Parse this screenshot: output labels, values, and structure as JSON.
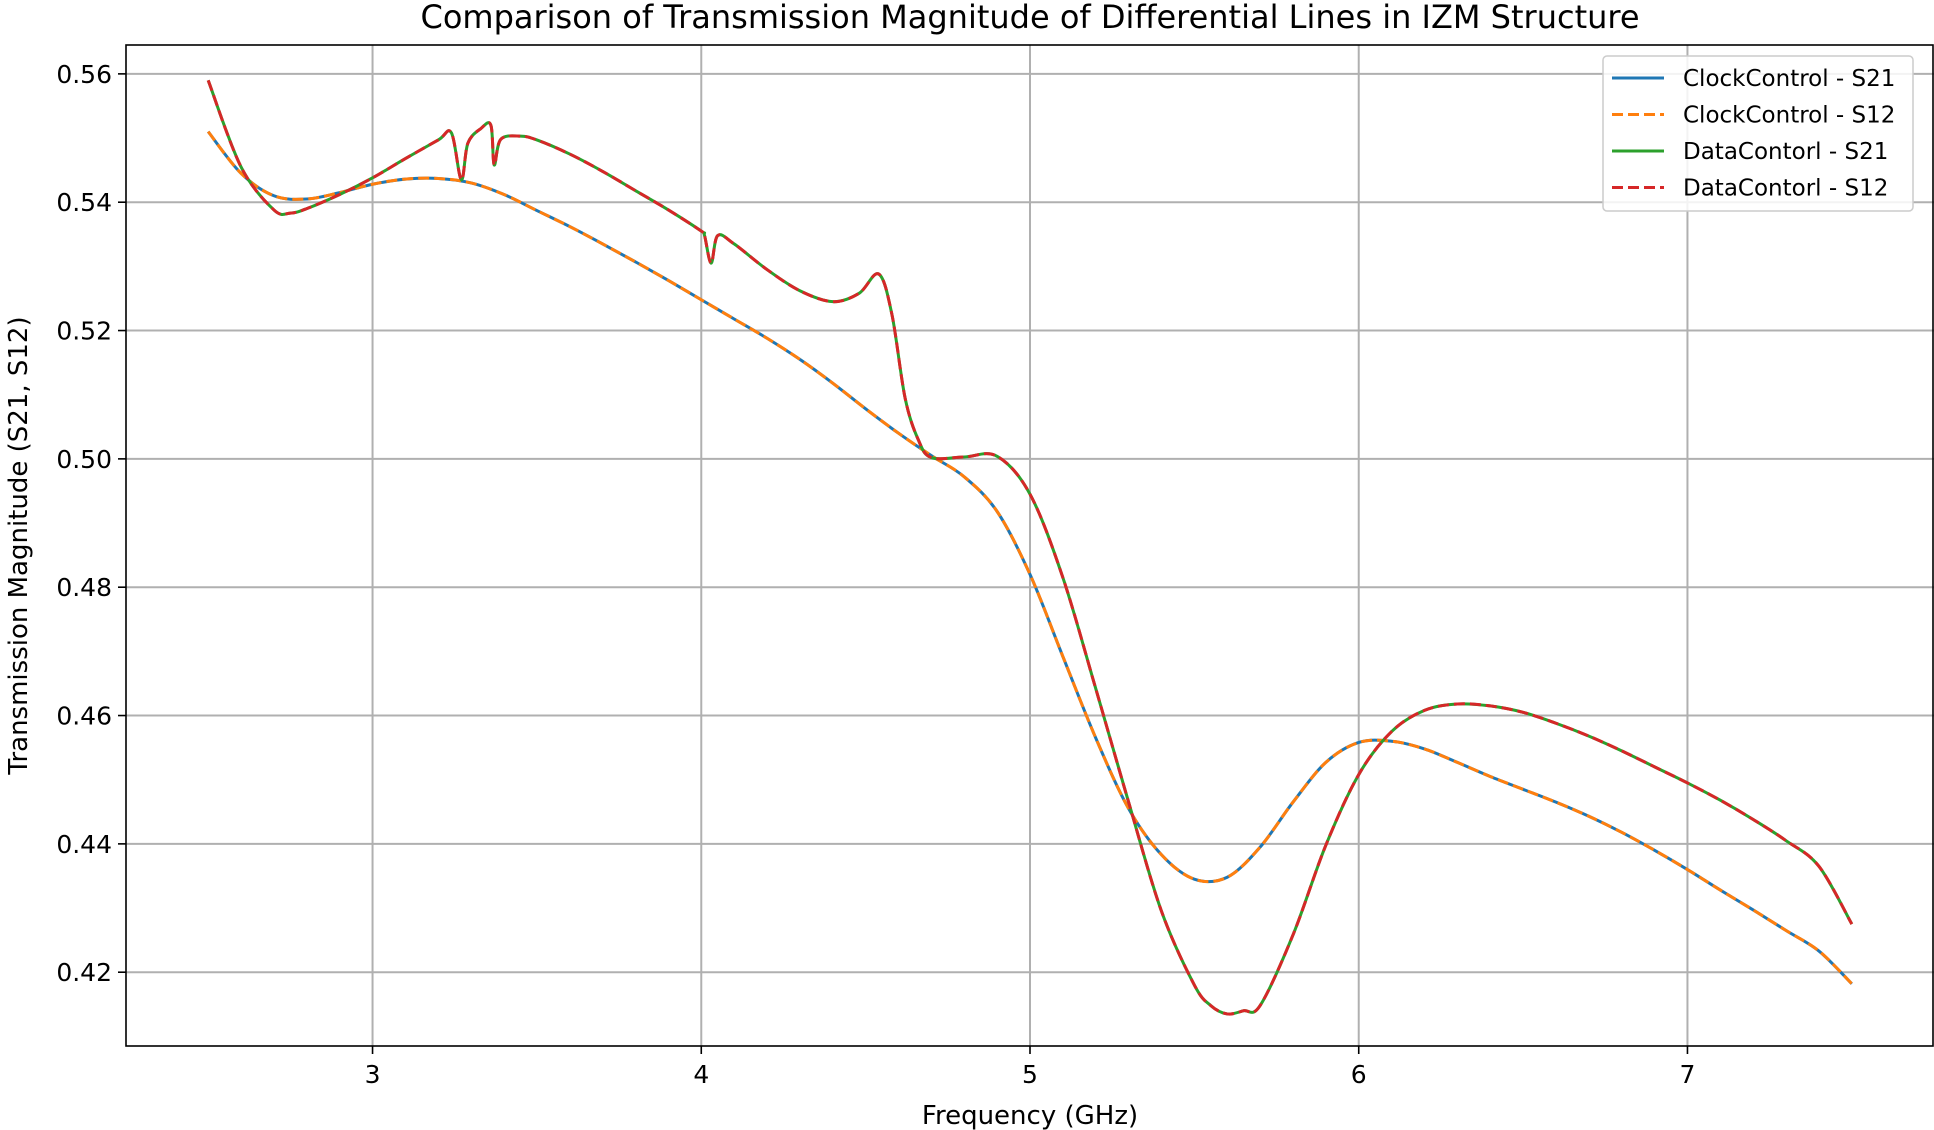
{
  "chart_data": {
    "type": "line",
    "title": "Comparison of Transmission Magnitude of Differential Lines in IZM Structure",
    "xlabel": "Frequency (GHz)",
    "ylabel": "Transmission Magnitude (S21, S12)",
    "xlim": [
      2.25,
      7.75
    ],
    "ylim": [
      0.4085,
      0.5645
    ],
    "xticks": [
      3,
      4,
      5,
      6,
      7
    ],
    "xtick_labels": [
      "3",
      "4",
      "5",
      "6",
      "7"
    ],
    "yticks": [
      0.42,
      0.44,
      0.46,
      0.48,
      0.5,
      0.52,
      0.54,
      0.56
    ],
    "ytick_labels": [
      "0.42",
      "0.44",
      "0.46",
      "0.48",
      "0.50",
      "0.52",
      "0.54",
      "0.56"
    ],
    "grid": true,
    "legend_position": "top-right",
    "series": [
      {
        "name": "ClockControl - S21",
        "color": "#1f77b4",
        "linestyle": "solid",
        "x": [
          2.5,
          2.6,
          2.7,
          2.8,
          2.9,
          3.0,
          3.1,
          3.2,
          3.3,
          3.4,
          3.5,
          3.6,
          3.7,
          3.8,
          3.9,
          4.0,
          4.1,
          4.2,
          4.3,
          4.4,
          4.5,
          4.6,
          4.7,
          4.8,
          4.9,
          5.0,
          5.1,
          5.2,
          5.3,
          5.4,
          5.5,
          5.6,
          5.7,
          5.8,
          5.9,
          6.0,
          6.1,
          6.2,
          6.3,
          6.4,
          6.5,
          6.6,
          6.7,
          6.8,
          6.9,
          7.0,
          7.1,
          7.2,
          7.3,
          7.4,
          7.5
        ],
        "y": [
          0.551,
          0.5445,
          0.541,
          0.5405,
          0.5415,
          0.5428,
          0.5436,
          0.5437,
          0.543,
          0.5412,
          0.5387,
          0.5362,
          0.5335,
          0.5307,
          0.5278,
          0.5248,
          0.5218,
          0.5188,
          0.5155,
          0.5118,
          0.5078,
          0.504,
          0.5005,
          0.4972,
          0.4918,
          0.482,
          0.4692,
          0.4565,
          0.4455,
          0.4383,
          0.4345,
          0.4348,
          0.4395,
          0.4465,
          0.4527,
          0.4558,
          0.456,
          0.4548,
          0.4527,
          0.4505,
          0.4485,
          0.4465,
          0.4443,
          0.4418,
          0.439,
          0.436,
          0.4328,
          0.4297,
          0.4265,
          0.4233,
          0.4182
        ]
      },
      {
        "name": "ClockControl - S12",
        "color": "#ff7f0e",
        "linestyle": "dashed",
        "x": [
          2.5,
          2.6,
          2.7,
          2.8,
          2.9,
          3.0,
          3.1,
          3.2,
          3.3,
          3.4,
          3.5,
          3.6,
          3.7,
          3.8,
          3.9,
          4.0,
          4.1,
          4.2,
          4.3,
          4.4,
          4.5,
          4.6,
          4.7,
          4.8,
          4.9,
          5.0,
          5.1,
          5.2,
          5.3,
          5.4,
          5.5,
          5.6,
          5.7,
          5.8,
          5.9,
          6.0,
          6.1,
          6.2,
          6.3,
          6.4,
          6.5,
          6.6,
          6.7,
          6.8,
          6.9,
          7.0,
          7.1,
          7.2,
          7.3,
          7.4,
          7.5
        ],
        "y": [
          0.551,
          0.5445,
          0.541,
          0.5405,
          0.5415,
          0.5428,
          0.5436,
          0.5437,
          0.543,
          0.5412,
          0.5387,
          0.5362,
          0.5335,
          0.5307,
          0.5278,
          0.5248,
          0.5218,
          0.5188,
          0.5155,
          0.5118,
          0.5078,
          0.504,
          0.5005,
          0.4972,
          0.4918,
          0.482,
          0.4692,
          0.4565,
          0.4455,
          0.4383,
          0.4345,
          0.4348,
          0.4395,
          0.4465,
          0.4527,
          0.4558,
          0.456,
          0.4548,
          0.4527,
          0.4505,
          0.4485,
          0.4465,
          0.4443,
          0.4418,
          0.439,
          0.436,
          0.4328,
          0.4297,
          0.4265,
          0.4233,
          0.4182
        ]
      },
      {
        "name": "DataContorl - S21",
        "color": "#2ca02c",
        "linestyle": "solid",
        "x": [
          2.5,
          2.6,
          2.7,
          2.75,
          2.8,
          2.9,
          3.0,
          3.1,
          3.2,
          3.24,
          3.27,
          3.29,
          3.33,
          3.36,
          3.37,
          3.39,
          3.45,
          3.5,
          3.6,
          3.7,
          3.8,
          3.9,
          4.0,
          4.01,
          4.03,
          4.05,
          4.1,
          4.2,
          4.3,
          4.4,
          4.48,
          4.54,
          4.58,
          4.62,
          4.66,
          4.7,
          4.8,
          4.9,
          5.0,
          5.1,
          5.2,
          5.3,
          5.4,
          5.5,
          5.55,
          5.6,
          5.65,
          5.7,
          5.8,
          5.9,
          6.0,
          6.1,
          6.2,
          6.3,
          6.4,
          6.5,
          6.6,
          6.7,
          6.8,
          6.9,
          7.0,
          7.1,
          7.2,
          7.3,
          7.4,
          7.5
        ],
        "y": [
          0.559,
          0.5455,
          0.5388,
          0.5383,
          0.539,
          0.5412,
          0.5438,
          0.5468,
          0.5497,
          0.5508,
          0.5435,
          0.5492,
          0.5515,
          0.552,
          0.5458,
          0.5498,
          0.5503,
          0.5497,
          0.5475,
          0.5448,
          0.5418,
          0.5388,
          0.5355,
          0.5348,
          0.5305,
          0.5348,
          0.5335,
          0.5295,
          0.5262,
          0.5245,
          0.5258,
          0.5288,
          0.5225,
          0.5095,
          0.503,
          0.5002,
          0.5003,
          0.5004,
          0.4945,
          0.4815,
          0.4642,
          0.4465,
          0.4295,
          0.418,
          0.4148,
          0.4135,
          0.414,
          0.4148,
          0.4258,
          0.4398,
          0.4508,
          0.4575,
          0.4608,
          0.4618,
          0.4615,
          0.4605,
          0.4588,
          0.4568,
          0.4545,
          0.452,
          0.4495,
          0.4468,
          0.4438,
          0.4405,
          0.4365,
          0.4275
        ]
      },
      {
        "name": "DataContorl - S12",
        "color": "#d62728",
        "linestyle": "dashed",
        "x": [
          2.5,
          2.6,
          2.7,
          2.75,
          2.8,
          2.9,
          3.0,
          3.1,
          3.2,
          3.24,
          3.27,
          3.29,
          3.33,
          3.36,
          3.37,
          3.39,
          3.45,
          3.5,
          3.6,
          3.7,
          3.8,
          3.9,
          4.0,
          4.01,
          4.03,
          4.05,
          4.1,
          4.2,
          4.3,
          4.4,
          4.48,
          4.54,
          4.58,
          4.62,
          4.66,
          4.7,
          4.8,
          4.9,
          5.0,
          5.1,
          5.2,
          5.3,
          5.4,
          5.5,
          5.55,
          5.6,
          5.65,
          5.7,
          5.8,
          5.9,
          6.0,
          6.1,
          6.2,
          6.3,
          6.4,
          6.5,
          6.6,
          6.7,
          6.8,
          6.9,
          7.0,
          7.1,
          7.2,
          7.3,
          7.4,
          7.5
        ],
        "y": [
          0.559,
          0.5455,
          0.5388,
          0.5383,
          0.539,
          0.5412,
          0.5438,
          0.5468,
          0.5497,
          0.5508,
          0.5435,
          0.5492,
          0.5515,
          0.552,
          0.5458,
          0.5498,
          0.5503,
          0.5497,
          0.5475,
          0.5448,
          0.5418,
          0.5388,
          0.5355,
          0.5348,
          0.5305,
          0.5348,
          0.5335,
          0.5295,
          0.5262,
          0.5245,
          0.5258,
          0.5288,
          0.5225,
          0.5095,
          0.503,
          0.5002,
          0.5003,
          0.5004,
          0.4945,
          0.4815,
          0.4642,
          0.4465,
          0.4295,
          0.418,
          0.4148,
          0.4135,
          0.414,
          0.4148,
          0.4258,
          0.4398,
          0.4508,
          0.4575,
          0.4608,
          0.4618,
          0.4615,
          0.4605,
          0.4588,
          0.4568,
          0.4545,
          0.452,
          0.4495,
          0.4468,
          0.4438,
          0.4405,
          0.4365,
          0.4275
        ]
      }
    ]
  }
}
